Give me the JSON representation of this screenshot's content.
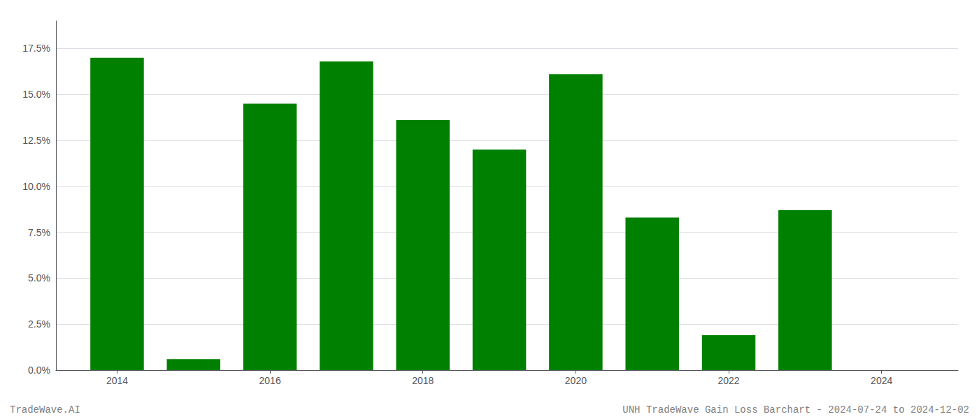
{
  "chart_data": {
    "type": "bar",
    "x": [
      2014,
      2015,
      2016,
      2017,
      2018,
      2019,
      2020,
      2021,
      2022,
      2023,
      2024
    ],
    "values": [
      0.17,
      0.006,
      0.145,
      0.168,
      0.136,
      0.12,
      0.161,
      0.083,
      0.019,
      0.087,
      0.0
    ],
    "color": "#008000",
    "xlim": [
      2013.2,
      2025.0
    ],
    "xticks": [
      2014,
      2016,
      2018,
      2020,
      2022,
      2024
    ],
    "ylim": [
      0.0,
      0.19
    ],
    "yticks": [
      {
        "value": 0.0,
        "label": "0.0%"
      },
      {
        "value": 0.025,
        "label": "2.5%"
      },
      {
        "value": 0.05,
        "label": "5.0%"
      },
      {
        "value": 0.075,
        "label": "7.5%"
      },
      {
        "value": 0.1,
        "label": "10.0%"
      },
      {
        "value": 0.125,
        "label": "12.5%"
      },
      {
        "value": 0.15,
        "label": "15.0%"
      },
      {
        "value": 0.175,
        "label": "17.5%"
      }
    ],
    "grid": true,
    "annotations": [
      "TradeWave.AI",
      "UNH TradeWave Gain Loss Barchart - 2024-07-24 to 2024-12-02"
    ]
  }
}
